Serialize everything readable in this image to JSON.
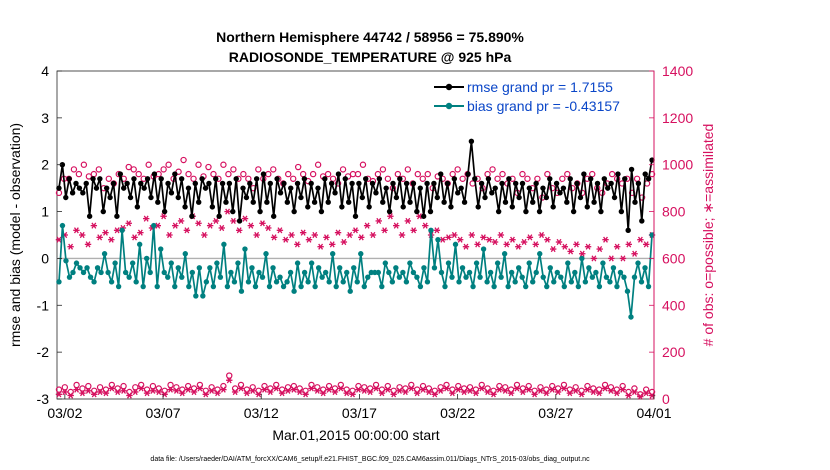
{
  "chart_data": {
    "type": "line",
    "title": "Northern Hemisphere 44742 / 58956 = 75.890%",
    "subtitle": "RADIOSONDE_TEMPERATURE @ 925 hPa",
    "xlabel": "Mar.01,2015 00:00:00 start",
    "ylabel_left": "rmse and bias (model - observation)",
    "ylabel_right": "# of obs: o=possible; ∗=assimilated",
    "x_ticks": [
      "03/02",
      "03/07",
      "03/12",
      "03/17",
      "03/22",
      "03/27",
      "04/01"
    ],
    "x_tick_days": [
      1,
      6,
      11,
      16,
      21,
      26,
      31
    ],
    "xlim": [
      0.6,
      31
    ],
    "ylim_left": [
      -3,
      4
    ],
    "ylim_right": [
      0,
      1400
    ],
    "y_ticks_left": [
      "-3",
      "-2",
      "-1",
      "0",
      "1",
      "2",
      "3",
      "4"
    ],
    "y_ticks_right": [
      "0",
      "200",
      "400",
      "600",
      "800",
      "1000",
      "1200",
      "1400"
    ],
    "zero_line": true,
    "legend_position": "top-right",
    "colors": {
      "rmse": "#000000",
      "bias": "#008080",
      "obs": "#d6105f",
      "legend_text": "#0a46c8",
      "zero": "#b0b0b0"
    },
    "series": [
      {
        "name": "rmse grand pr = 1.7155",
        "axis": "left",
        "marker": "filled-circle",
        "values": [
          1.5,
          2.0,
          1.3,
          1.7,
          1.4,
          1.6,
          1.5,
          1.4,
          1.6,
          0.9,
          1.7,
          1.5,
          1.7,
          1.0,
          1.5,
          1.3,
          1.6,
          0.9,
          1.8,
          1.5,
          1.6,
          1.3,
          1.7,
          1.1,
          1.6,
          1.5,
          1.7,
          1.3,
          1.8,
          1.2,
          1.7,
          1.0,
          1.6,
          1.4,
          1.8,
          1.3,
          1.7,
          1.1,
          1.5,
          0.9,
          1.6,
          1.2,
          1.7,
          1.5,
          1.6,
          1.1,
          1.7,
          0.9,
          1.6,
          1.2,
          1.6,
          1.0,
          1.7,
          0.8,
          1.5,
          1.3,
          1.6,
          1.2,
          1.7,
          1.0,
          1.8,
          1.2,
          1.6,
          0.9,
          1.7,
          1.4,
          1.6,
          1.2,
          1.5,
          1.0,
          1.6,
          1.3,
          1.7,
          1.1,
          1.6,
          1.2,
          1.5,
          1.0,
          1.7,
          1.2,
          1.6,
          1.4,
          1.8,
          1.1,
          1.7,
          1.2,
          1.6,
          0.9,
          1.6,
          1.3,
          1.7,
          1.1,
          1.6,
          1.4,
          1.7,
          1.2,
          1.5,
          1.0,
          1.6,
          1.3,
          1.7,
          1.1,
          1.6,
          1.2,
          1.6,
          1.0,
          1.5,
          0.9,
          1.6,
          1.0,
          1.6,
          1.3,
          1.8,
          1.2,
          1.6,
          1.1,
          1.7,
          1.4,
          1.5,
          1.2,
          1.8,
          2.5,
          1.7,
          1.1,
          1.6,
          1.3,
          1.7,
          1.4,
          1.5,
          1.0,
          1.6,
          1.2,
          1.7,
          1.1,
          1.6,
          1.3,
          1.6,
          1.0,
          1.5,
          1.2,
          1.6,
          1.0,
          1.5,
          1.3,
          1.7,
          1.1,
          1.6,
          1.4,
          1.5,
          1.2,
          1.7,
          1.0,
          1.6,
          1.3,
          1.8,
          1.1,
          1.7,
          1.2,
          1.6,
          1.0,
          1.7,
          1.5,
          1.6,
          1.3,
          1.8,
          1.0,
          1.7,
          0.6,
          1.9,
          1.2,
          1.6,
          0.8,
          1.8,
          1.7,
          2.1
        ]
      },
      {
        "name": "bias grand pr = -0.43157",
        "axis": "left",
        "marker": "filled-circle",
        "values": [
          -0.5,
          0.7,
          -0.05,
          -0.4,
          -0.3,
          -0.1,
          -0.2,
          -0.3,
          -0.2,
          -0.4,
          -0.5,
          -0.2,
          -0.3,
          0.1,
          -0.3,
          -0.5,
          -0.1,
          -0.6,
          0.6,
          -0.3,
          -0.4,
          -0.1,
          -0.5,
          0.3,
          -0.6,
          0.0,
          -0.3,
          0.7,
          -0.6,
          0.2,
          -0.3,
          -0.4,
          -0.1,
          -0.6,
          -0.2,
          -0.4,
          0.1,
          -0.6,
          -0.3,
          -0.8,
          -0.2,
          -0.8,
          -0.5,
          -0.2,
          -0.6,
          -0.1,
          -0.4,
          0.3,
          -0.6,
          -0.3,
          -0.5,
          -0.1,
          -0.7,
          0.2,
          -0.5,
          -0.2,
          -0.6,
          -0.3,
          -0.4,
          0.1,
          -0.6,
          -0.2,
          -0.5,
          -0.4,
          -0.6,
          -0.5,
          -0.3,
          -0.7,
          -0.1,
          -0.6,
          -0.3,
          -0.5,
          -0.1,
          -0.6,
          -0.2,
          -0.4,
          -0.3,
          -0.5,
          0.1,
          -0.6,
          -0.2,
          -0.5,
          -0.3,
          -0.7,
          -0.2,
          -0.5,
          0.1,
          -0.6,
          -0.4,
          -0.3,
          -0.3,
          -0.3,
          -0.6,
          -0.1,
          -0.3,
          -0.5,
          -0.2,
          -0.4,
          -0.3,
          -0.5,
          -0.1,
          -0.3,
          -0.4,
          -0.6,
          -0.2,
          -0.5,
          0.6,
          -0.2,
          0.4,
          -0.3,
          -0.6,
          -0.1,
          -0.4,
          0.3,
          -0.5,
          -0.2,
          -0.4,
          -0.3,
          -0.6,
          -0.1,
          -0.4,
          0.2,
          -0.5,
          -0.3,
          -0.6,
          -0.1,
          -0.4,
          0.1,
          -0.6,
          -0.3,
          -0.5,
          -0.2,
          -0.4,
          -0.6,
          -0.1,
          -0.5,
          -0.3,
          0.1,
          -0.4,
          -0.6,
          -0.2,
          -0.5,
          -0.3,
          -0.4,
          -0.6,
          -0.1,
          -0.5,
          -0.3,
          -0.6,
          0.0,
          -0.5,
          -0.2,
          -0.4,
          -0.3,
          -0.6,
          -0.1,
          -0.4,
          -0.5,
          -0.2,
          -0.6,
          -0.3,
          -0.4,
          -0.7,
          -1.25,
          -0.4,
          -0.1,
          -0.5,
          -0.2,
          -0.6,
          0.5
        ]
      }
    ],
    "obs_possible_upper": [
      880,
      940,
      940,
      980,
      960,
      1000,
      950,
      960,
      980,
      900,
      940,
      920,
      960,
      940,
      990,
      980,
      960,
      940,
      1000,
      950,
      960,
      980,
      1000,
      940,
      970,
      1020,
      960,
      940,
      1000,
      950,
      990,
      960,
      940,
      1000,
      960,
      980,
      940,
      960,
      940,
      900,
      980,
      940,
      960,
      980,
      940,
      920,
      960,
      940,
      990,
      960,
      930,
      960,
      1000,
      950,
      960,
      940,
      920,
      980,
      950,
      960,
      960,
      1000,
      940,
      930,
      960,
      980,
      940,
      900,
      960,
      940,
      980,
      920,
      960,
      940,
      960,
      900,
      950,
      940,
      920,
      960,
      980,
      940,
      960,
      920,
      940,
      900,
      960,
      980,
      940,
      960,
      920,
      940,
      880,
      960,
      940,
      900,
      940,
      860,
      960,
      900,
      880,
      940,
      960,
      900,
      920,
      880,
      940,
      960,
      900,
      880,
      920,
      960,
      940,
      920,
      940,
      880,
      940,
      860,
      920,
      960
    ],
    "obs_assimilated_mid": [
      680,
      700,
      650,
      720,
      700,
      660,
      740,
      690,
      710,
      680,
      720,
      730,
      750,
      690,
      710,
      770,
      730,
      740,
      780,
      700,
      740,
      760,
      720,
      780,
      750,
      700,
      740,
      760,
      730,
      800,
      760,
      720,
      770,
      740,
      700,
      750,
      730,
      690,
      720,
      680,
      700,
      660,
      710,
      680,
      700,
      650,
      690,
      660,
      710,
      670,
      700,
      720,
      690,
      740,
      700,
      760,
      720,
      780,
      740,
      700,
      760,
      720,
      780,
      740,
      700,
      720,
      680,
      690,
      700,
      680,
      650,
      700,
      660,
      690,
      680,
      670,
      700,
      660,
      680,
      650,
      670,
      690,
      660,
      700,
      680,
      640,
      670,
      650,
      630,
      660,
      620,
      650,
      600,
      640,
      680,
      600,
      650,
      600,
      660,
      620,
      680,
      660,
      700
    ],
    "obs_possible_lower": [
      40,
      50,
      30,
      60,
      45,
      55,
      35,
      50,
      40,
      60,
      45,
      55,
      30,
      50,
      60,
      40,
      55,
      45,
      35,
      60,
      50,
      40,
      55,
      45,
      60,
      35,
      50,
      40,
      55,
      100,
      45,
      60,
      40,
      50,
      35,
      55,
      45,
      60,
      40,
      50,
      55,
      45,
      35,
      60,
      50,
      40,
      55,
      45,
      60,
      40,
      35,
      55,
      50,
      45,
      60,
      40,
      55,
      35,
      50,
      45,
      60,
      40,
      55,
      45,
      35,
      50,
      60,
      40,
      55,
      45,
      50,
      40,
      60,
      45,
      35,
      55,
      50,
      40,
      60,
      45,
      55,
      35,
      50,
      40,
      55,
      45,
      60,
      40,
      50,
      35,
      55,
      45,
      40,
      60,
      50,
      40,
      55,
      30,
      45,
      20,
      40,
      30
    ],
    "obs_assimilated_lower": [
      20,
      30,
      15,
      40,
      25,
      35,
      20,
      30,
      25,
      45,
      30,
      35,
      15,
      30,
      45,
      25,
      35,
      30,
      20,
      40,
      35,
      25,
      40,
      30,
      45,
      20,
      35,
      25,
      40,
      80,
      30,
      45,
      25,
      35,
      20,
      40,
      30,
      45,
      25,
      35,
      40,
      30,
      20,
      45,
      35,
      25,
      40,
      30,
      45,
      25,
      20,
      40,
      35,
      30,
      45,
      25,
      40,
      20,
      35,
      30,
      45,
      25,
      40,
      30,
      20,
      35,
      45,
      25,
      40,
      30,
      35,
      25,
      45,
      30,
      20,
      40,
      35,
      25,
      45,
      30,
      40,
      20,
      35,
      25,
      40,
      30,
      45,
      25,
      35,
      20,
      40,
      30,
      25,
      45,
      35,
      25,
      40,
      15,
      30,
      10,
      25,
      15
    ]
  },
  "footer": "data file: /Users/raeder/DAI/ATM_forcXX/CAM6_setup/f.e21.FHIST_BGC.f09_025.CAM6assim.011/Diags_NTrS_2015-03/obs_diag_output.nc"
}
